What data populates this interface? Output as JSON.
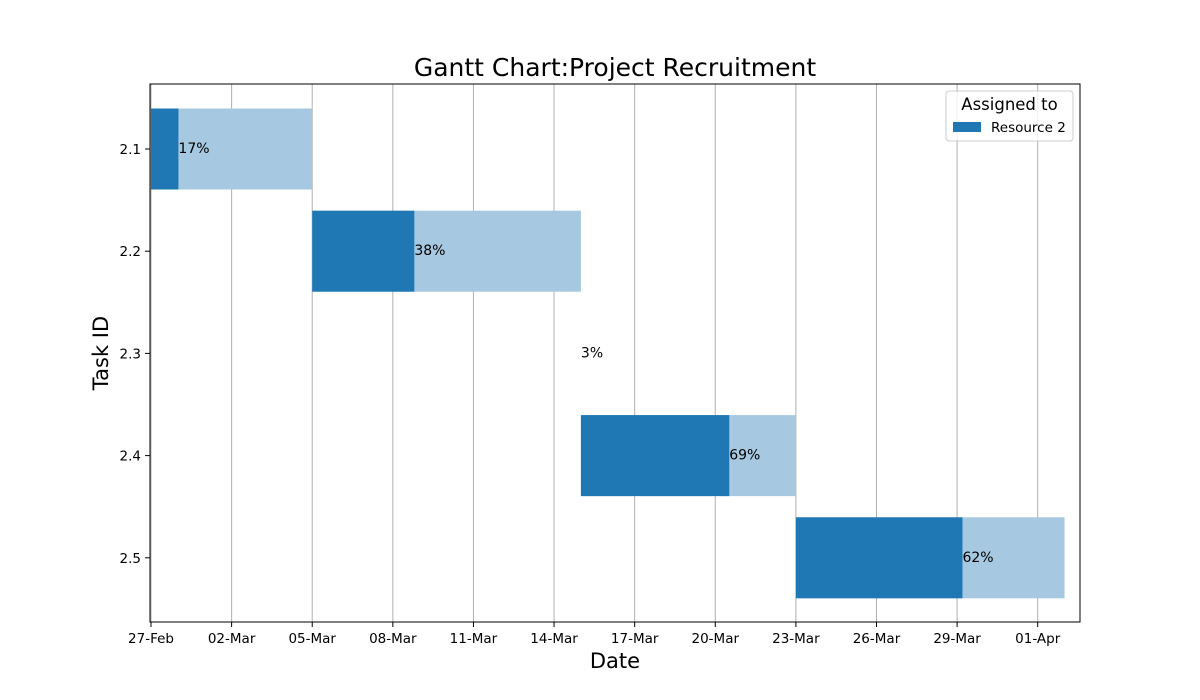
{
  "chart_data": {
    "type": "gantt",
    "title": "Gantt Chart:Project Recruitment",
    "xlabel": "Date",
    "ylabel": "Task ID",
    "x_start": "2024-02-27",
    "x_ticks": [
      "27-Feb",
      "02-Mar",
      "05-Mar",
      "08-Mar",
      "11-Mar",
      "14-Mar",
      "17-Mar",
      "20-Mar",
      "23-Mar",
      "26-Mar",
      "29-Mar",
      "01-Apr"
    ],
    "y_ticks": [
      "2.1",
      "2.2",
      "2.3",
      "2.4",
      "2.5"
    ],
    "grid": "vertical",
    "legend": {
      "title": "Assigned to",
      "placement": "top-right",
      "entries": [
        {
          "name": "Resource 2",
          "color": "#1f77b4"
        }
      ]
    },
    "colors": {
      "done": "#1f77b4",
      "remaining": "#a6c8e0"
    },
    "tasks": [
      {
        "id": "2.1",
        "start": "2024-02-27",
        "end": "2024-03-04",
        "completion": 0.17,
        "label": "17%",
        "resource": "Resource 2"
      },
      {
        "id": "2.2",
        "start": "2024-03-04",
        "end": "2024-03-14",
        "completion": 0.38,
        "label": "38%",
        "resource": "Resource 2"
      },
      {
        "id": "2.3",
        "start": "2024-03-14",
        "end": "2024-03-14",
        "completion": 0.03,
        "label": "3%",
        "resource": "Resource 2"
      },
      {
        "id": "2.4",
        "start": "2024-03-14",
        "end": "2024-03-22",
        "completion": 0.69,
        "label": "69%",
        "resource": "Resource 2"
      },
      {
        "id": "2.5",
        "start": "2024-03-22",
        "end": "2024-04-01",
        "completion": 0.62,
        "label": "62%",
        "resource": "Resource 2"
      }
    ]
  }
}
